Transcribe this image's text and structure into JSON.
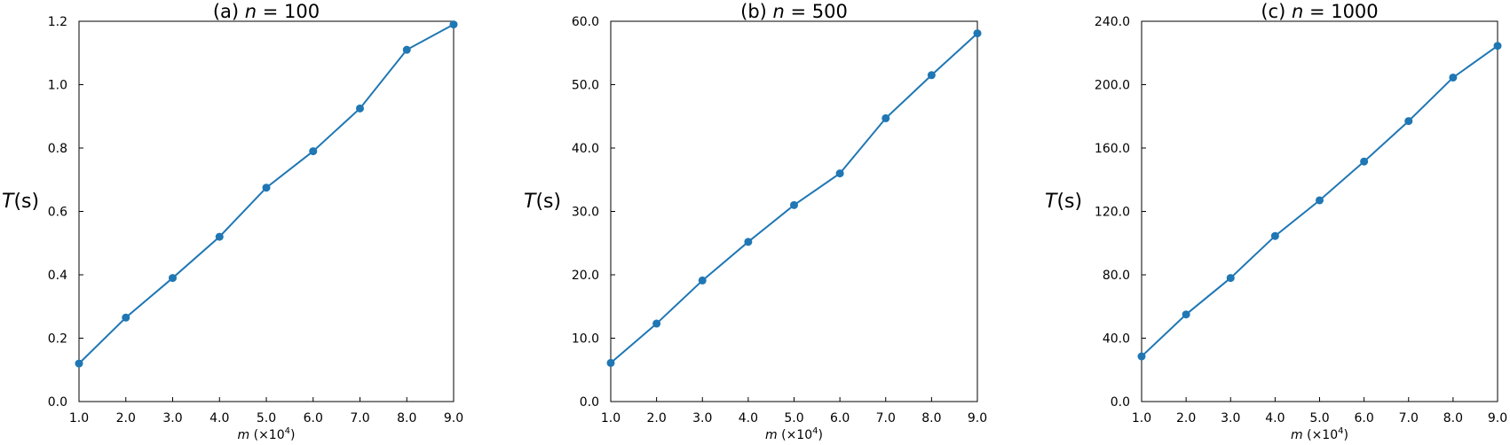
{
  "chart_data": [
    {
      "type": "line",
      "title_prefix": "(a)",
      "title_var": "n",
      "title_rest": " = 100",
      "xlabel_var": "m",
      "xlabel_rest": " (×10",
      "xlabel_exp": "4",
      "xlabel_close": ")",
      "ylabel_var": "T",
      "ylabel_rest": "(s)",
      "xlim": [
        1,
        9
      ],
      "ylim": [
        0,
        1.2
      ],
      "x": [
        1,
        2,
        3,
        4,
        5,
        6,
        7,
        8,
        9
      ],
      "xticks": [
        "1.0",
        "2.0",
        "3.0",
        "4.0",
        "5.0",
        "6.0",
        "7.0",
        "8.0",
        "9.0"
      ],
      "yticks": [
        "0.0",
        "0.2",
        "0.4",
        "0.6",
        "0.8",
        "1.0",
        "1.2"
      ],
      "series": [
        {
          "values": [
            0.12,
            0.265,
            0.39,
            0.52,
            0.675,
            0.79,
            0.925,
            1.11,
            1.19
          ]
        }
      ],
      "color": "#1f77b4",
      "grid": false
    },
    {
      "type": "line",
      "title_prefix": "(b)",
      "title_var": "n",
      "title_rest": " = 500",
      "xlabel_var": "m",
      "xlabel_rest": " (×10",
      "xlabel_exp": "4",
      "xlabel_close": ")",
      "ylabel_var": "T",
      "ylabel_rest": "(s)",
      "xlim": [
        1,
        9
      ],
      "ylim": [
        0,
        60
      ],
      "x": [
        1,
        2,
        3,
        4,
        5,
        6,
        7,
        8,
        9
      ],
      "xticks": [
        "1.0",
        "2.0",
        "3.0",
        "4.0",
        "5.0",
        "6.0",
        "7.0",
        "8.0",
        "9.0"
      ],
      "yticks": [
        "0.0",
        "10.0",
        "20.0",
        "30.0",
        "40.0",
        "50.0",
        "60.0"
      ],
      "series": [
        {
          "values": [
            6.1,
            12.3,
            19.1,
            25.2,
            31.0,
            36.0,
            44.7,
            51.5,
            58.1
          ]
        }
      ],
      "color": "#1f77b4",
      "grid": false
    },
    {
      "type": "line",
      "title_prefix": "(c)",
      "title_var": "n",
      "title_rest": " = 1000",
      "xlabel_var": "m",
      "xlabel_rest": " (×10",
      "xlabel_exp": "4",
      "xlabel_close": ")",
      "ylabel_var": "T",
      "ylabel_rest": "(s)",
      "xlim": [
        1,
        9
      ],
      "ylim": [
        0,
        240
      ],
      "x": [
        1,
        2,
        3,
        4,
        5,
        6,
        7,
        8,
        9
      ],
      "xticks": [
        "1.0",
        "2.0",
        "3.0",
        "4.0",
        "5.0",
        "6.0",
        "7.0",
        "8.0",
        "9.0"
      ],
      "yticks": [
        "0.0",
        "40.0",
        "80.0",
        "120.0",
        "160.0",
        "200.0",
        "240.0"
      ],
      "series": [
        {
          "values": [
            28.5,
            55.0,
            78.0,
            104.5,
            127.0,
            151.5,
            177.0,
            204.5,
            224.5
          ]
        }
      ],
      "color": "#1f77b4",
      "grid": false
    }
  ]
}
